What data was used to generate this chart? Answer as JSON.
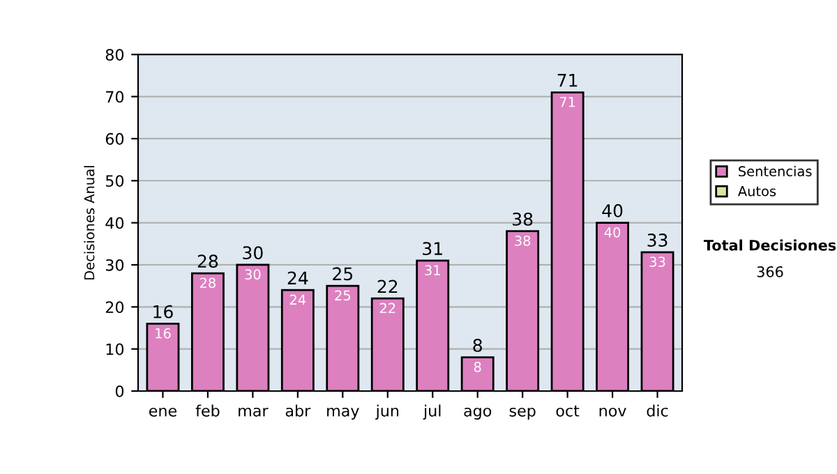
{
  "chart_data": {
    "type": "bar",
    "ylabel": "Decisiones Anual",
    "categories": [
      "ene",
      "feb",
      "mar",
      "abr",
      "may",
      "jun",
      "jul",
      "ago",
      "sep",
      "oct",
      "nov",
      "dic"
    ],
    "series": [
      {
        "name": "Sentencias",
        "color": "#dd80c0",
        "values": [
          16,
          28,
          30,
          24,
          25,
          22,
          31,
          8,
          38,
          71,
          40,
          33
        ]
      },
      {
        "name": "Autos",
        "color": "#d4e8a0",
        "values": [
          null,
          null,
          null,
          null,
          null,
          null,
          null,
          null,
          null,
          null,
          null,
          null
        ]
      }
    ],
    "stacked": true,
    "data_labels": true,
    "totals": [
      "16",
      "28",
      "30",
      "24",
      "25",
      "22",
      "31",
      "8",
      "38",
      "71",
      "40",
      "33"
    ],
    "ylim": [
      0,
      80
    ],
    "yticks": [
      0,
      10,
      20,
      30,
      40,
      50,
      60,
      70,
      80
    ],
    "grid": "y",
    "legend": "right",
    "annotations": [
      "Total Decisiones",
      "366"
    ]
  }
}
